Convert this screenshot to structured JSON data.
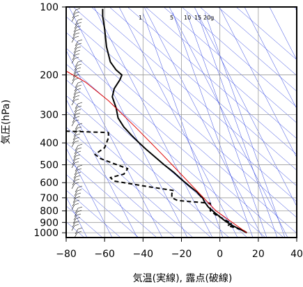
{
  "chart_data": {
    "type": "line",
    "xlabel": "気温(実線), 露点(破線)",
    "ylabel": "気圧(hPa)",
    "xlim": [
      -80,
      40
    ],
    "ylim": [
      1050,
      100
    ],
    "y_scale": "log",
    "x_ticks": [
      -80,
      -60,
      -40,
      -20,
      0,
      20,
      40
    ],
    "y_ticks": [
      100,
      200,
      300,
      400,
      500,
      600,
      700,
      800,
      900,
      1000
    ],
    "mixing_ratio_labels": [
      "1",
      "5",
      "10",
      "15",
      "20g"
    ],
    "grid": true,
    "series": [
      {
        "line_style": "solid",
        "color": "#000000",
        "points": [
          [
            14,
            1000
          ],
          [
            10,
            960
          ],
          [
            6,
            925
          ],
          [
            3,
            890
          ],
          [
            0,
            850
          ],
          [
            -3,
            810
          ],
          [
            -6,
            770
          ],
          [
            -8,
            730
          ],
          [
            -9,
            700
          ],
          [
            -10,
            690
          ],
          [
            -12,
            660
          ],
          [
            -16,
            620
          ],
          [
            -20,
            580
          ],
          [
            -24,
            540
          ],
          [
            -29,
            500
          ],
          [
            -34,
            460
          ],
          [
            -38,
            430
          ],
          [
            -42,
            400
          ],
          [
            -46,
            370
          ],
          [
            -50,
            340
          ],
          [
            -53,
            310
          ],
          [
            -54,
            280
          ],
          [
            -56,
            250
          ],
          [
            -55,
            230
          ],
          [
            -52,
            210
          ],
          [
            -51,
            200
          ],
          [
            -54,
            190
          ],
          [
            -57,
            175
          ],
          [
            -59,
            150
          ],
          [
            -60,
            125
          ],
          [
            -61,
            110
          ],
          [
            -61,
            102
          ]
        ]
      },
      {
        "line_style": "dashed",
        "color": "#000000",
        "points": [
          [
            14,
            1000
          ],
          [
            12,
            975
          ],
          [
            8,
            950
          ],
          [
            4,
            930
          ],
          [
            6,
            910
          ],
          [
            3,
            880
          ],
          [
            1,
            860
          ],
          [
            -2,
            835
          ],
          [
            -5,
            800
          ],
          [
            -5,
            740
          ],
          [
            -22,
            720
          ],
          [
            -25,
            700
          ],
          [
            -25,
            670
          ],
          [
            -24,
            650
          ],
          [
            -40,
            620
          ],
          [
            -55,
            590
          ],
          [
            -57,
            570
          ],
          [
            -50,
            550
          ],
          [
            -48,
            520
          ],
          [
            -55,
            495
          ],
          [
            -62,
            470
          ],
          [
            -65,
            450
          ],
          [
            -60,
            420
          ],
          [
            -58,
            380
          ],
          [
            -58,
            360
          ],
          [
            -80,
            355
          ]
        ]
      },
      {
        "line_style": "solid",
        "color": "#e00000",
        "points": [
          [
            14,
            1000
          ],
          [
            -2,
            800
          ],
          [
            -16,
            600
          ],
          [
            -30,
            450
          ],
          [
            -44,
            340
          ],
          [
            -58,
            260
          ],
          [
            -70,
            215
          ],
          [
            -81,
            190
          ]
        ]
      }
    ]
  }
}
